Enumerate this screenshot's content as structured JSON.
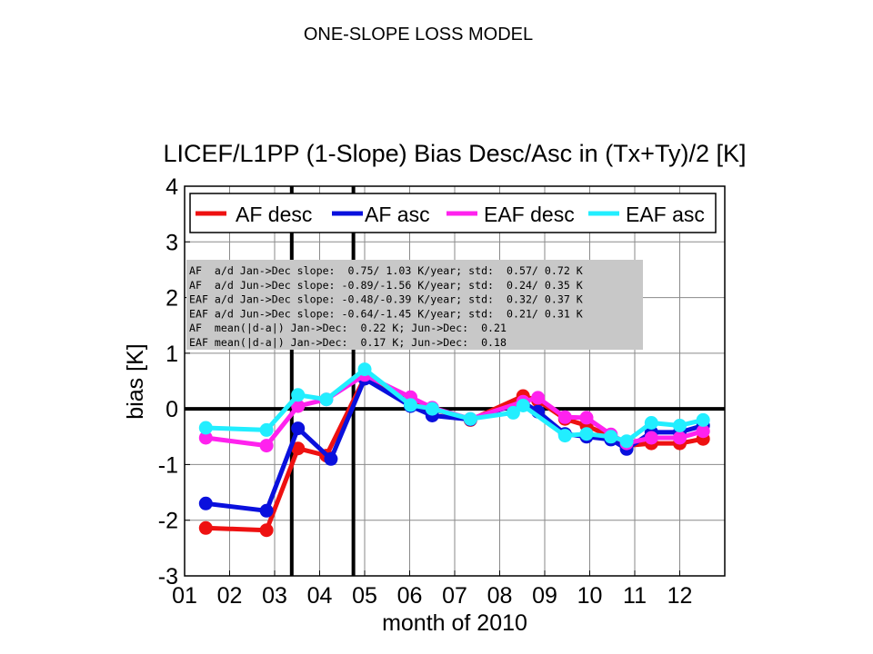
{
  "slide": {
    "title": "ONE-SLOPE LOSS MODEL"
  },
  "chart_data": {
    "type": "line",
    "title": "LICEF/L1PP (1-Slope) Bias Desc/Asc in (Tx+Ty)/2 [K]",
    "xlabel": "month of 2010",
    "ylabel": "bias [K]",
    "xlim": [
      1,
      13
    ],
    "ylim": [
      -3,
      4
    ],
    "xticks": [
      1,
      2,
      3,
      4,
      5,
      6,
      7,
      8,
      9,
      10,
      11,
      12
    ],
    "xtick_labels": [
      "01",
      "02",
      "03",
      "04",
      "05",
      "06",
      "07",
      "08",
      "09",
      "10",
      "11",
      "12"
    ],
    "yticks": [
      -3,
      -2,
      -1,
      0,
      1,
      2,
      3,
      4
    ],
    "ytick_labels": [
      "-3",
      "-2",
      "-1",
      "0",
      "1",
      "2",
      "3",
      "4"
    ],
    "grid": true,
    "legend_position": "top",
    "reference_lines": {
      "horizontal_y": 0,
      "vertical_x": [
        3.38,
        4.75
      ]
    },
    "series": [
      {
        "name": "AF desc",
        "color": "#ee1111",
        "x": [
          1.47,
          2.82,
          3.52,
          4.15,
          5.0,
          6.02,
          6.5,
          7.35,
          8.52,
          8.85,
          9.45,
          9.93,
          10.47,
          10.82,
          11.37,
          12.0,
          12.52
        ],
        "y": [
          -2.14,
          -2.18,
          -0.71,
          -0.84,
          0.56,
          0.13,
          0.0,
          -0.2,
          0.23,
          0.15,
          -0.18,
          -0.3,
          -0.5,
          -0.66,
          -0.62,
          -0.62,
          -0.54
        ]
      },
      {
        "name": "AF asc",
        "color": "#0a10dd",
        "x": [
          1.47,
          2.82,
          3.52,
          4.25,
          5.0,
          6.02,
          6.5,
          7.35,
          8.52,
          8.85,
          9.45,
          9.93,
          10.47,
          10.82,
          11.37,
          12.0,
          12.52
        ],
        "y": [
          -1.7,
          -1.83,
          -0.35,
          -0.9,
          0.54,
          0.05,
          -0.12,
          -0.19,
          0.12,
          -0.05,
          -0.45,
          -0.5,
          -0.55,
          -0.72,
          -0.42,
          -0.42,
          -0.3
        ]
      },
      {
        "name": "EAF desc",
        "color": "#ff22ee",
        "x": [
          1.47,
          2.82,
          3.52,
          4.15,
          5.0,
          6.02,
          6.5,
          7.35,
          8.52,
          8.85,
          9.45,
          9.93,
          10.47,
          10.82,
          11.37,
          12.0,
          12.52
        ],
        "y": [
          -0.52,
          -0.66,
          0.05,
          0.17,
          0.61,
          0.21,
          0.02,
          -0.18,
          0.13,
          0.2,
          -0.15,
          -0.16,
          -0.46,
          -0.62,
          -0.52,
          -0.52,
          -0.4
        ]
      },
      {
        "name": "EAF asc",
        "color": "#22eeff",
        "x": [
          1.47,
          2.82,
          3.52,
          4.15,
          5.0,
          6.02,
          6.5,
          7.35,
          8.3,
          8.52,
          9.45,
          9.93,
          10.47,
          10.82,
          11.37,
          12.0,
          12.52
        ],
        "y": [
          -0.34,
          -0.38,
          0.25,
          0.17,
          0.71,
          0.07,
          0.0,
          -0.18,
          -0.07,
          0.06,
          -0.48,
          -0.45,
          -0.5,
          -0.58,
          -0.25,
          -0.3,
          -0.2
        ]
      }
    ],
    "annotation_lines": [
      "AF  a/d Jan->Dec slope:  0.75/ 1.03 K/year; std:  0.57/ 0.72 K",
      "AF  a/d Jun->Dec slope: -0.89/-1.56 K/year; std:  0.24/ 0.35 K",
      "EAF a/d Jan->Dec slope: -0.48/-0.39 K/year; std:  0.32/ 0.37 K",
      "EAF a/d Jun->Dec slope: -0.64/-1.45 K/year; std:  0.21/ 0.31 K",
      "AF  mean(|d-a|) Jan->Dec:  0.22 K; Jun->Dec:  0.21",
      "EAF mean(|d-a|) Jan->Dec:  0.17 K; Jun->Dec:  0.18"
    ]
  }
}
